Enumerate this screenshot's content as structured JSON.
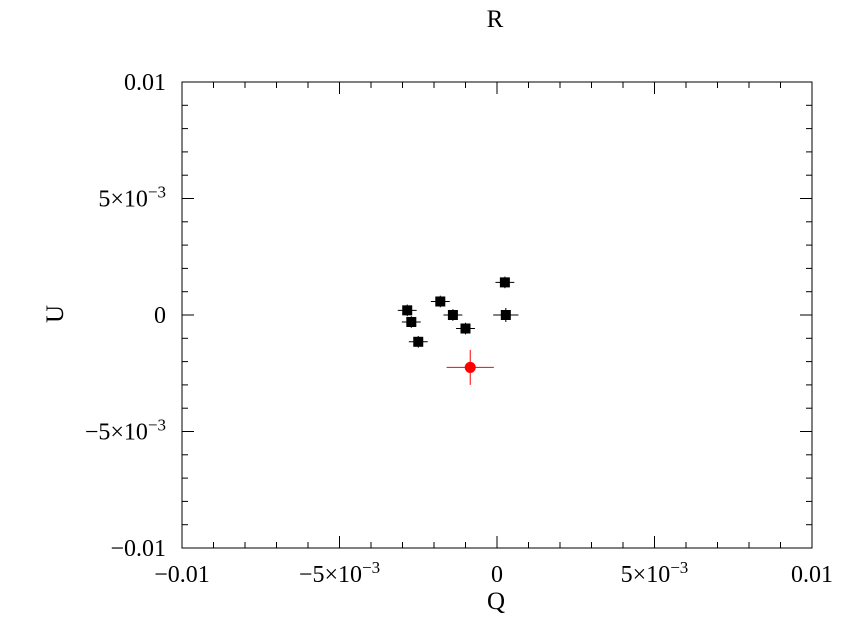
{
  "chart_data": {
    "type": "scatter",
    "title": "R",
    "xlabel": "Q",
    "ylabel": "U",
    "xlim": [
      -0.01,
      0.01
    ],
    "ylim": [
      -0.01,
      0.01
    ],
    "grid": false,
    "x_ticks": [
      {
        "value": -0.01,
        "label": "−0.01"
      },
      {
        "value": -0.005,
        "label": "−5×10−3"
      },
      {
        "value": 0,
        "label": "0"
      },
      {
        "value": 0.005,
        "label": "5×10−3"
      },
      {
        "value": 0.01,
        "label": "0.01"
      }
    ],
    "y_ticks": [
      {
        "value": 0.01,
        "label": "0.01"
      },
      {
        "value": 0.005,
        "label": "5×10−3"
      },
      {
        "value": 0,
        "label": "0"
      },
      {
        "value": -0.005,
        "label": "−5×10−3"
      },
      {
        "value": -0.01,
        "label": "−0.01"
      }
    ],
    "series": [
      {
        "color": "#000000",
        "marker": "square",
        "points": [
          {
            "x": -0.00285,
            "y": 0.0002,
            "xerr": 0.0003,
            "yerr": 0.00025
          },
          {
            "x": -0.00272,
            "y": -0.0003,
            "xerr": 0.0003,
            "yerr": 0.00025
          },
          {
            "x": -0.0025,
            "y": -0.00115,
            "xerr": 0.0003,
            "yerr": 0.00025
          },
          {
            "x": -0.0018,
            "y": 0.00058,
            "xerr": 0.0003,
            "yerr": 0.00025
          },
          {
            "x": -0.0014,
            "y": 0.0,
            "xerr": 0.0003,
            "yerr": 0.00025
          },
          {
            "x": -0.001,
            "y": -0.00058,
            "xerr": 0.0003,
            "yerr": 0.00025
          },
          {
            "x": 0.00025,
            "y": 0.0014,
            "xerr": 0.0003,
            "yerr": 0.00025
          },
          {
            "x": 0.00028,
            "y": 0.0,
            "xerr": 0.0004,
            "yerr": 0.0003
          }
        ]
      },
      {
        "color": "#ff0000",
        "marker": "circle",
        "points": [
          {
            "x": -0.00085,
            "y": -0.00225,
            "xerr": 0.00075,
            "yerr": 0.00075
          }
        ]
      }
    ]
  }
}
